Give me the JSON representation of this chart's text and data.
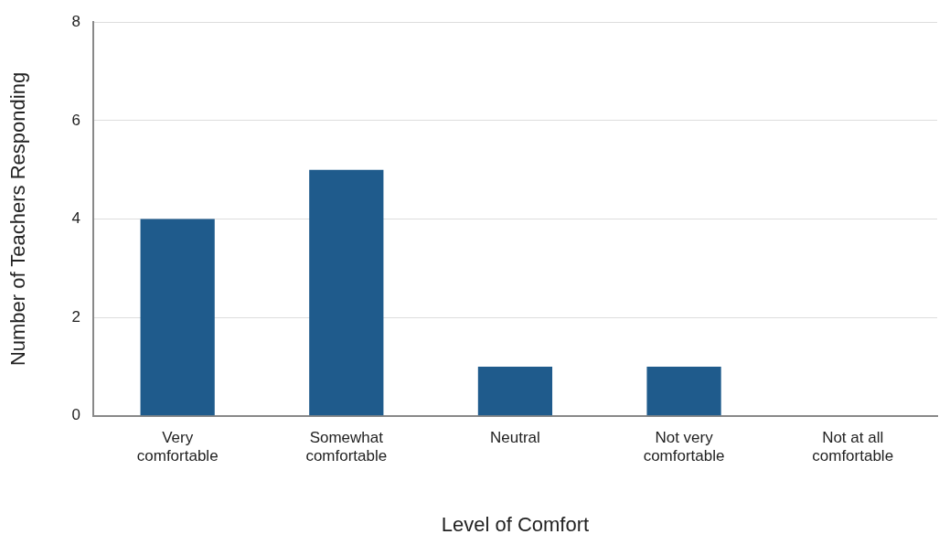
{
  "chart_data": {
    "type": "bar",
    "xlabel": "Level of Comfort",
    "ylabel": "Number of Teachers Responding",
    "categories": [
      "Very comfortable",
      "Somewhat comfortable",
      "Neutral",
      "Not very comfortable",
      "Not at all comfortable"
    ],
    "values": [
      4,
      5,
      1,
      1,
      0
    ],
    "color": "#1f5b8c",
    "ylim": [
      0,
      8
    ],
    "yticks": [
      0,
      2,
      4,
      6,
      8
    ],
    "grid": "y",
    "legend": false
  }
}
